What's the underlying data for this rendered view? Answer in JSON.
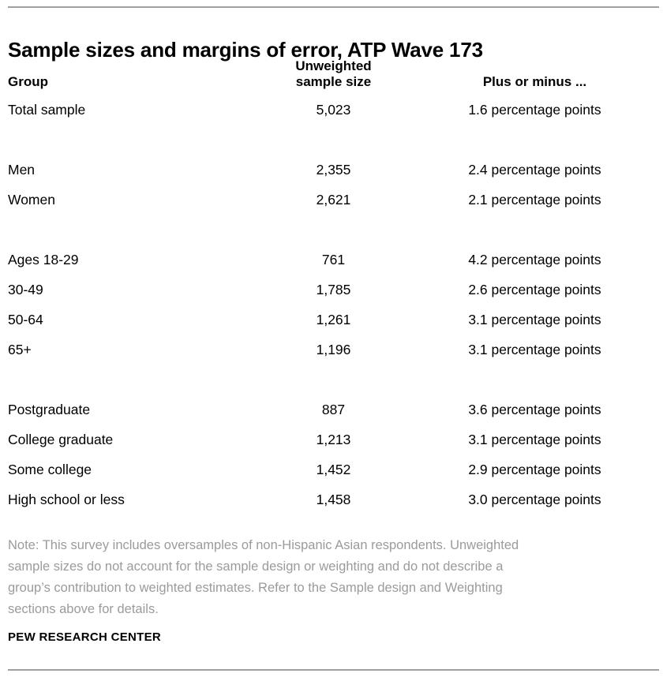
{
  "page": {
    "title": "Sample sizes and margins of error, ATP Wave 173",
    "footer": "PEW RESEARCH CENTER"
  },
  "table": {
    "columns": {
      "group": "Group",
      "size_line1": "Unweighted",
      "size_line2": "sample size",
      "moe": "Plus or minus ..."
    },
    "rows": [
      {
        "group": "Total sample",
        "size": "5,023",
        "moe": "1.6 percentage points"
      },
      {
        "group": "Men",
        "size": "2,355",
        "moe": "2.4 percentage points"
      },
      {
        "group": "Women",
        "size": "2,621",
        "moe": "2.1 percentage points"
      },
      {
        "group": "Ages 18-29",
        "size": "761",
        "moe": "4.2 percentage points"
      },
      {
        "group": "30-49",
        "size": "1,785",
        "moe": "2.6 percentage points"
      },
      {
        "group": "50-64",
        "size": "1,261",
        "moe": "3.1 percentage points"
      },
      {
        "group": "65+",
        "size": "1,196",
        "moe": "3.1 percentage points"
      },
      {
        "group": "Postgraduate",
        "size": "887",
        "moe": "3.6 percentage points"
      },
      {
        "group": "College graduate",
        "size": "1,213",
        "moe": "3.1 percentage points"
      },
      {
        "group": "Some college",
        "size": "1,452",
        "moe": "2.9 percentage points"
      },
      {
        "group": "High school or less",
        "size": "1,458",
        "moe": "3.0 percentage points"
      }
    ]
  },
  "note": {
    "lines": [
      "Note: This survey includes oversamples of non-Hispanic Asian respondents. Unweighted",
      "sample sizes do not account for the sample design or weighting and do not describe a",
      "group’s contribution to weighted estimates. Refer to the Sample design and Weighting",
      "sections above for details."
    ]
  },
  "colors": {
    "text": "#000000",
    "note_gray": "#9b9b9b",
    "rule_gray": "#9f9f9f",
    "background": "#ffffff"
  },
  "chart_data": {
    "type": "table",
    "title": "Sample sizes and margins of error, ATP Wave 173",
    "columns": [
      "Group",
      "Unweighted sample size",
      "Plus or minus ..."
    ],
    "row_groups": [
      [
        {
          "group": "Total sample",
          "unweighted_sample_size": 5023,
          "margin_of_error_pct_points": 1.6
        }
      ],
      [
        {
          "group": "Men",
          "unweighted_sample_size": 2355,
          "margin_of_error_pct_points": 2.4
        },
        {
          "group": "Women",
          "unweighted_sample_size": 2621,
          "margin_of_error_pct_points": 2.1
        }
      ],
      [
        {
          "group": "Ages 18-29",
          "unweighted_sample_size": 761,
          "margin_of_error_pct_points": 4.2
        },
        {
          "group": "30-49",
          "unweighted_sample_size": 1785,
          "margin_of_error_pct_points": 2.6
        },
        {
          "group": "50-64",
          "unweighted_sample_size": 1261,
          "margin_of_error_pct_points": 3.1
        },
        {
          "group": "65+",
          "unweighted_sample_size": 1196,
          "margin_of_error_pct_points": 3.1
        }
      ],
      [
        {
          "group": "Postgraduate",
          "unweighted_sample_size": 887,
          "margin_of_error_pct_points": 3.6
        },
        {
          "group": "College graduate",
          "unweighted_sample_size": 1213,
          "margin_of_error_pct_points": 3.1
        },
        {
          "group": "Some college",
          "unweighted_sample_size": 1452,
          "margin_of_error_pct_points": 2.9
        },
        {
          "group": "High school or less",
          "unweighted_sample_size": 1458,
          "margin_of_error_pct_points": 3.0
        }
      ]
    ],
    "note": "Note: This survey includes oversamples of non-Hispanic Asian respondents. Unweighted sample sizes do not account for the sample design or weighting and do not describe a group’s contribution to weighted estimates. Refer to the Sample design and Weighting sections above for details.",
    "source": "PEW RESEARCH CENTER"
  }
}
